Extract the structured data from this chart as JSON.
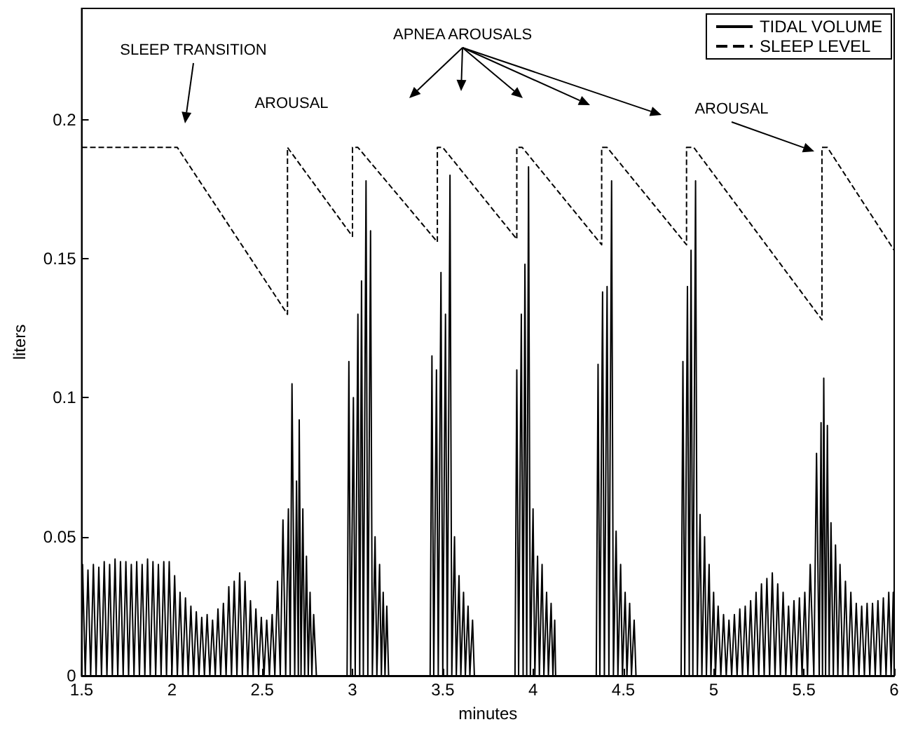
{
  "chart_data": {
    "type": "line",
    "xlabel": "minutes",
    "ylabel": "liters",
    "xlim": [
      1.5,
      6
    ],
    "xticks": [
      1.5,
      2,
      2.5,
      3,
      3.5,
      4,
      4.5,
      5,
      5.5,
      6
    ],
    "ylim": [
      0,
      0.24
    ],
    "yticks": [
      0,
      0.05,
      0.1,
      0.15,
      0.2
    ],
    "grid": false,
    "legend": "top right",
    "marker": "none",
    "annotations": [
      "SLEEP TRANSITION",
      "AROUSAL",
      "APNEA AROUSALS",
      "AROUSAL"
    ],
    "series": [
      {
        "name": "TIDAL VOLUME",
        "color": "#000000",
        "line_style": "solid",
        "x": [
          1.5,
          1.505,
          1.52,
          1.535,
          1.55,
          1.565,
          1.58,
          1.595,
          1.61,
          1.625,
          1.64,
          1.655,
          1.67,
          1.685,
          1.7,
          1.715,
          1.73,
          1.745,
          1.76,
          1.775,
          1.79,
          1.805,
          1.82,
          1.835,
          1.85,
          1.865,
          1.88,
          1.895,
          1.91,
          1.925,
          1.94,
          1.955,
          1.97,
          1.985,
          2.0,
          2.015,
          2.03,
          2.045,
          2.06,
          2.075,
          2.09,
          2.105,
          2.12,
          2.135,
          2.15,
          2.165,
          2.18,
          2.195,
          2.21,
          2.225,
          2.24,
          2.255,
          2.27,
          2.285,
          2.3,
          2.315,
          2.33,
          2.345,
          2.36,
          2.375,
          2.39,
          2.405,
          2.42,
          2.435,
          2.45,
          2.465,
          2.48,
          2.495,
          2.51,
          2.525,
          2.54,
          2.555,
          2.57,
          2.585,
          2.6,
          2.615,
          2.63,
          2.645,
          2.655,
          2.665,
          2.68,
          2.69,
          2.7,
          2.705,
          2.715,
          2.725,
          2.735,
          2.745,
          2.755,
          2.765,
          2.775,
          2.785,
          2.8,
          2.97,
          2.98,
          2.99,
          3.005,
          3.015,
          3.03,
          3.04,
          3.05,
          3.06,
          3.075,
          3.085,
          3.1,
          3.11,
          3.125,
          3.135,
          3.15,
          3.16,
          3.17,
          3.18,
          3.19,
          3.2,
          3.43,
          3.44,
          3.45,
          3.465,
          3.475,
          3.49,
          3.5,
          3.515,
          3.525,
          3.54,
          3.55,
          3.565,
          3.575,
          3.59,
          3.6,
          3.615,
          3.625,
          3.64,
          3.65,
          3.665,
          3.675,
          3.9,
          3.91,
          3.92,
          3.935,
          3.945,
          3.955,
          3.965,
          3.975,
          3.985,
          4.0,
          4.01,
          4.025,
          4.035,
          4.05,
          4.06,
          4.075,
          4.085,
          4.1,
          4.11,
          4.12,
          4.125,
          4.35,
          4.36,
          4.37,
          4.385,
          4.395,
          4.41,
          4.42,
          4.435,
          4.445,
          4.46,
          4.47,
          4.485,
          4.495,
          4.51,
          4.52,
          4.535,
          4.545,
          4.56,
          4.57,
          4.82,
          4.83,
          4.84,
          4.855,
          4.865,
          4.875,
          4.885,
          4.9,
          4.91,
          4.925,
          4.935,
          4.95,
          4.96,
          4.975,
          4.985,
          5.0,
          5.01,
          5.025,
          5.04,
          5.055,
          5.07,
          5.085,
          5.1,
          5.115,
          5.13,
          5.145,
          5.16,
          5.175,
          5.19,
          5.205,
          5.22,
          5.235,
          5.25,
          5.265,
          5.28,
          5.295,
          5.31,
          5.325,
          5.34,
          5.355,
          5.37,
          5.385,
          5.4,
          5.415,
          5.43,
          5.445,
          5.46,
          5.475,
          5.49,
          5.505,
          5.52,
          5.535,
          5.555,
          5.57,
          5.585,
          5.595,
          5.603,
          5.61,
          5.62,
          5.63,
          5.64,
          5.65,
          5.663,
          5.675,
          5.688,
          5.7,
          5.715,
          5.73,
          5.745,
          5.76,
          5.775,
          5.79,
          5.805,
          5.82,
          5.835,
          5.85,
          5.865,
          5.88,
          5.895,
          5.91,
          5.925,
          5.94,
          5.955,
          5.97,
          5.983,
          5.995,
          6.0
        ],
        "values": [
          0,
          0.04,
          0,
          0.038,
          0,
          0.04,
          0,
          0.039,
          0,
          0.041,
          0,
          0.04,
          0,
          0.042,
          0,
          0.041,
          0,
          0.041,
          0,
          0.04,
          0,
          0.041,
          0,
          0.04,
          0,
          0.042,
          0,
          0.041,
          0,
          0.04,
          0,
          0.041,
          0,
          0.041,
          0,
          0.036,
          0,
          0.03,
          0,
          0.028,
          0,
          0.025,
          0,
          0.023,
          0,
          0.021,
          0,
          0.022,
          0,
          0.02,
          0,
          0.024,
          0,
          0.026,
          0,
          0.032,
          0,
          0.034,
          0,
          0.037,
          0,
          0.034,
          0,
          0.027,
          0,
          0.024,
          0,
          0.021,
          0,
          0.02,
          0,
          0.022,
          0,
          0.034,
          0,
          0.056,
          0,
          0.06,
          0,
          0.105,
          0,
          0.07,
          0,
          0.092,
          0,
          0.06,
          0,
          0.043,
          0,
          0.03,
          0,
          0.022,
          0,
          0,
          0.113,
          0,
          0.1,
          0,
          0.13,
          0,
          0.142,
          0,
          0.178,
          0,
          0.16,
          0,
          0.05,
          0,
          0.04,
          0,
          0.03,
          0,
          0.025,
          0,
          0,
          0.115,
          0,
          0.11,
          0,
          0.145,
          0,
          0.13,
          0,
          0.18,
          0,
          0.05,
          0,
          0.036,
          0,
          0.03,
          0,
          0.025,
          0,
          0.02,
          0,
          0,
          0.11,
          0,
          0.13,
          0,
          0.148,
          0,
          0.183,
          0,
          0.06,
          0,
          0.043,
          0,
          0.04,
          0,
          0.03,
          0,
          0.026,
          0,
          0.02,
          0,
          0,
          0.112,
          0,
          0.138,
          0,
          0.14,
          0,
          0.178,
          0,
          0.052,
          0,
          0.04,
          0,
          0.03,
          0,
          0.026,
          0,
          0.02,
          0,
          0,
          0.113,
          0,
          0.14,
          0,
          0.153,
          0,
          0.178,
          0,
          0.058,
          0,
          0.05,
          0,
          0.04,
          0,
          0.03,
          0,
          0.025,
          0,
          0.022,
          0,
          0.02,
          0,
          0.022,
          0,
          0.024,
          0,
          0.025,
          0,
          0.027,
          0,
          0.03,
          0,
          0.033,
          0,
          0.035,
          0,
          0.037,
          0,
          0.033,
          0,
          0.03,
          0,
          0.025,
          0,
          0.027,
          0,
          0.028,
          0,
          0.03,
          0,
          0.04,
          0,
          0.08,
          0,
          0.091,
          0,
          0.107,
          0,
          0.09,
          0,
          0.055,
          0,
          0.047,
          0,
          0.04,
          0,
          0.034,
          0,
          0.03,
          0,
          0.026,
          0,
          0.025,
          0,
          0.026,
          0,
          0.026,
          0,
          0.027,
          0,
          0.028,
          0,
          0.03,
          0,
          0.03,
          0
        ]
      },
      {
        "name": "SLEEP LEVEL",
        "color": "#000000",
        "line_style": "dashed",
        "x": [
          1.5,
          2.03,
          2.64,
          2.64,
          3.0,
          3.0,
          3.03,
          3.47,
          3.47,
          3.5,
          3.91,
          3.91,
          3.94,
          4.38,
          4.38,
          4.41,
          4.85,
          4.85,
          4.89,
          5.6,
          5.6,
          5.63,
          6
        ],
        "values": [
          0.19,
          0.19,
          0.13,
          0.19,
          0.158,
          0.19,
          0.19,
          0.156,
          0.19,
          0.19,
          0.157,
          0.19,
          0.19,
          0.155,
          0.19,
          0.19,
          0.155,
          0.19,
          0.19,
          0.128,
          0.19,
          0.19,
          0.153
        ]
      }
    ]
  }
}
